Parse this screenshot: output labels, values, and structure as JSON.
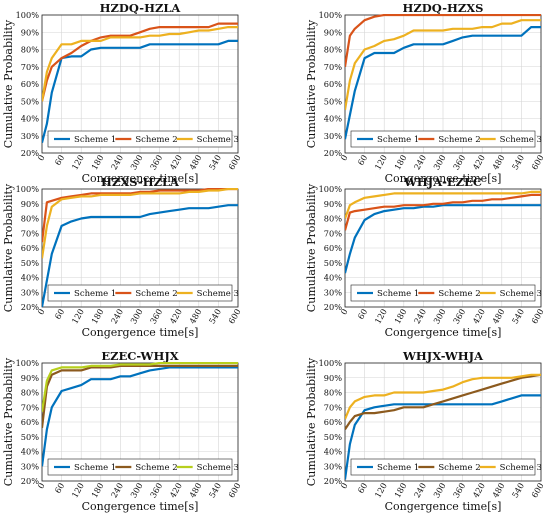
{
  "colors": {
    "orange_red": "#d95319",
    "yellow": "#edb120",
    "blue": "#0072bd",
    "brown": "#8c5a1e",
    "yellow_green": "#b7cf1d",
    "axes": "#222222",
    "grid": "#d6d6d6"
  },
  "chart_data": [
    {
      "type": "line",
      "title": "HZDQ-HZLA",
      "xlabel": "Congergence time[s]",
      "ylabel": "Cumulative Probability",
      "xlim": [
        0,
        600
      ],
      "ylim": [
        20,
        100
      ],
      "xticks": [
        "0",
        "60",
        "120",
        "180",
        "240",
        "300",
        "360",
        "420",
        "480",
        "540",
        "600"
      ],
      "yticks": [
        "20%",
        "30%",
        "40%",
        "50%",
        "60%",
        "70%",
        "80%",
        "90%",
        "100%"
      ],
      "grid": true,
      "legend_position": "bottom",
      "x": [
        0,
        15,
        30,
        60,
        90,
        120,
        150,
        180,
        210,
        240,
        270,
        300,
        330,
        360,
        390,
        420,
        450,
        480,
        510,
        540,
        570,
        600
      ],
      "series": [
        {
          "name": "Scheme 1",
          "color": "blue",
          "values": [
            26,
            37,
            55,
            75,
            76,
            76,
            80,
            81,
            81,
            81,
            81,
            81,
            83,
            83,
            83,
            83,
            83,
            83,
            83,
            83,
            85,
            85
          ]
        },
        {
          "name": "Scheme 2",
          "color": "orange_red",
          "values": [
            50,
            62,
            70,
            75,
            78,
            82,
            85,
            87,
            88,
            88,
            88,
            90,
            92,
            93,
            93,
            93,
            93,
            93,
            93,
            95,
            95,
            95
          ]
        },
        {
          "name": "Scheme 3",
          "color": "yellow",
          "values": [
            50,
            67,
            75,
            83,
            83,
            85,
            85,
            85,
            87,
            87,
            87,
            87,
            88,
            88,
            89,
            89,
            90,
            91,
            91,
            92,
            93,
            93
          ]
        }
      ]
    },
    {
      "type": "line",
      "title": "HZDQ-HZXS",
      "xlabel": "Congergence time[s]",
      "ylabel": "Cumulative Probability",
      "xlim": [
        0,
        600
      ],
      "ylim": [
        20,
        100
      ],
      "xticks": [
        "0",
        "60",
        "120",
        "180",
        "240",
        "300",
        "360",
        "420",
        "480",
        "540",
        "600"
      ],
      "yticks": [
        "20%",
        "30%",
        "40%",
        "50%",
        "60%",
        "70%",
        "80%",
        "90%",
        "100%"
      ],
      "grid": true,
      "legend_position": "bottom",
      "x": [
        0,
        15,
        30,
        60,
        90,
        120,
        150,
        180,
        210,
        240,
        270,
        300,
        330,
        360,
        390,
        420,
        450,
        480,
        510,
        540,
        570,
        600
      ],
      "series": [
        {
          "name": "Scheme 1",
          "color": "blue",
          "values": [
            28,
            42,
            56,
            75,
            78,
            78,
            78,
            81,
            83,
            83,
            83,
            83,
            85,
            87,
            88,
            88,
            88,
            88,
            88,
            88,
            93,
            93
          ]
        },
        {
          "name": "Scheme 2",
          "color": "orange_red",
          "values": [
            70,
            88,
            92,
            97,
            99,
            100,
            100,
            100,
            100,
            100,
            100,
            100,
            100,
            100,
            100,
            100,
            100,
            100,
            100,
            100,
            100,
            100
          ]
        },
        {
          "name": "Scheme 3",
          "color": "yellow",
          "values": [
            45,
            62,
            72,
            80,
            82,
            85,
            86,
            88,
            91,
            91,
            91,
            91,
            92,
            92,
            92,
            93,
            93,
            95,
            95,
            97,
            97,
            97
          ]
        }
      ]
    },
    {
      "type": "line",
      "title": "HZXS-HZLA",
      "xlabel": "Congergence time[s]",
      "ylabel": "Cumulative Probability",
      "xlim": [
        0,
        600
      ],
      "ylim": [
        20,
        100
      ],
      "xticks": [
        "0",
        "60",
        "120",
        "180",
        "240",
        "300",
        "360",
        "420",
        "480",
        "540",
        "600"
      ],
      "yticks": [
        "20%",
        "30%",
        "40%",
        "50%",
        "60%",
        "70%",
        "80%",
        "90%",
        "100%"
      ],
      "grid": true,
      "legend_position": "bottom",
      "x": [
        0,
        15,
        30,
        60,
        90,
        120,
        150,
        180,
        210,
        240,
        270,
        300,
        330,
        360,
        390,
        420,
        450,
        480,
        510,
        540,
        570,
        600
      ],
      "series": [
        {
          "name": "Scheme 1",
          "color": "blue",
          "values": [
            20,
            38,
            56,
            75,
            78,
            80,
            81,
            81,
            81,
            81,
            81,
            81,
            83,
            84,
            85,
            86,
            87,
            87,
            87,
            88,
            89,
            89
          ]
        },
        {
          "name": "Scheme 2",
          "color": "orange_red",
          "values": [
            64,
            91,
            92,
            94,
            95,
            96,
            97,
            97,
            97,
            97,
            97,
            98,
            98,
            99,
            99,
            99,
            99,
            99,
            100,
            100,
            100,
            100
          ]
        },
        {
          "name": "Scheme 3",
          "color": "yellow",
          "values": [
            53,
            75,
            88,
            93,
            94,
            95,
            95,
            96,
            96,
            96,
            96,
            97,
            97,
            97,
            97,
            97,
            98,
            98,
            99,
            99,
            100,
            100
          ]
        }
      ]
    },
    {
      "type": "line",
      "title": "WHJA-EZEC",
      "xlabel": "Congergence time[s]",
      "ylabel": "Cumulative Probability",
      "xlim": [
        0,
        600
      ],
      "ylim": [
        20,
        100
      ],
      "xticks": [
        "0",
        "60",
        "120",
        "180",
        "240",
        "300",
        "360",
        "420",
        "480",
        "540",
        "600"
      ],
      "yticks": [
        "20%",
        "30%",
        "40%",
        "50%",
        "60%",
        "70%",
        "80%",
        "90%",
        "100%"
      ],
      "grid": true,
      "legend_position": "bottom",
      "x": [
        0,
        15,
        30,
        60,
        90,
        120,
        150,
        180,
        210,
        240,
        270,
        300,
        330,
        360,
        390,
        420,
        450,
        480,
        510,
        540,
        570,
        600
      ],
      "series": [
        {
          "name": "Scheme 1",
          "color": "blue",
          "values": [
            43,
            56,
            67,
            79,
            83,
            85,
            86,
            87,
            87,
            88,
            88,
            89,
            89,
            89,
            89,
            89,
            89,
            89,
            89,
            89,
            89,
            89
          ]
        },
        {
          "name": "Scheme 2",
          "color": "orange_red",
          "values": [
            72,
            84,
            85,
            86,
            87,
            88,
            88,
            89,
            89,
            89,
            90,
            90,
            91,
            91,
            92,
            92,
            93,
            93,
            94,
            95,
            96,
            96
          ]
        },
        {
          "name": "Scheme 3",
          "color": "yellow",
          "values": [
            80,
            89,
            91,
            94,
            95,
            96,
            97,
            97,
            97,
            97,
            97,
            97,
            97,
            97,
            97,
            97,
            97,
            97,
            97,
            97,
            98,
            98
          ]
        }
      ]
    },
    {
      "type": "line",
      "title": "EZEC-WHJX",
      "xlabel": "Congergence time[s]",
      "ylabel": "Cumulative Probability",
      "xlim": [
        0,
        600
      ],
      "ylim": [
        20,
        100
      ],
      "xticks": [
        "0",
        "60",
        "120",
        "180",
        "240",
        "300",
        "360",
        "420",
        "480",
        "540",
        "600"
      ],
      "yticks": [
        "20%",
        "30%",
        "40%",
        "50%",
        "60%",
        "70%",
        "80%",
        "90%",
        "100%"
      ],
      "grid": true,
      "legend_position": "bottom",
      "x": [
        0,
        15,
        30,
        60,
        90,
        120,
        150,
        180,
        210,
        240,
        270,
        300,
        330,
        360,
        390,
        420,
        450,
        480,
        510,
        540,
        570,
        600
      ],
      "series": [
        {
          "name": "Scheme 1",
          "color": "blue",
          "values": [
            30,
            55,
            70,
            81,
            83,
            85,
            89,
            89,
            89,
            91,
            91,
            93,
            95,
            96,
            97,
            97,
            97,
            97,
            97,
            97,
            97,
            97
          ]
        },
        {
          "name": "Scheme 2",
          "color": "brown",
          "values": [
            56,
            84,
            92,
            95,
            95,
            95,
            97,
            97,
            97,
            98,
            98,
            98,
            98,
            98,
            98,
            98,
            98,
            98,
            98,
            98,
            98,
            98
          ]
        },
        {
          "name": "Scheme 3",
          "color": "yellow_green",
          "values": [
            67,
            88,
            95,
            97,
            97,
            97,
            98,
            98,
            98,
            99,
            99,
            99,
            99,
            100,
            100,
            100,
            100,
            100,
            100,
            100,
            100,
            100
          ]
        }
      ]
    },
    {
      "type": "line",
      "title": "WHJX-WHJA",
      "xlabel": "Congergence time[s]",
      "ylabel": "Cumulative Probability",
      "xlim": [
        0,
        600
      ],
      "ylim": [
        20,
        100
      ],
      "xticks": [
        "0",
        "60",
        "120",
        "180",
        "240",
        "300",
        "360",
        "420",
        "480",
        "540",
        "600"
      ],
      "yticks": [
        "20%",
        "30%",
        "40%",
        "50%",
        "60%",
        "70%",
        "80%",
        "90%",
        "100%"
      ],
      "grid": true,
      "legend_position": "bottom",
      "x": [
        0,
        15,
        30,
        60,
        90,
        120,
        150,
        180,
        210,
        240,
        270,
        300,
        330,
        360,
        390,
        420,
        450,
        480,
        510,
        540,
        570,
        600
      ],
      "series": [
        {
          "name": "Scheme 1",
          "color": "blue",
          "values": [
            21,
            45,
            58,
            68,
            70,
            71,
            72,
            72,
            72,
            72,
            72,
            72,
            72,
            72,
            72,
            72,
            72,
            74,
            76,
            78,
            78,
            78
          ]
        },
        {
          "name": "Scheme 2",
          "color": "brown",
          "values": [
            55,
            60,
            64,
            66,
            66,
            67,
            68,
            70,
            70,
            70,
            72,
            74,
            76,
            78,
            80,
            82,
            84,
            86,
            88,
            90,
            91,
            92
          ]
        },
        {
          "name": "Scheme 3",
          "color": "yellow",
          "values": [
            62,
            70,
            74,
            77,
            78,
            78,
            80,
            80,
            80,
            80,
            81,
            82,
            84,
            87,
            89,
            90,
            90,
            90,
            90,
            91,
            92,
            92
          ]
        }
      ]
    }
  ]
}
